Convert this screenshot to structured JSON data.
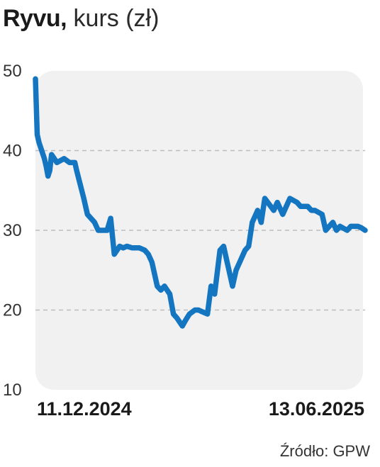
{
  "header": {
    "title_bold": "Ryvu,",
    "title_rest": " kurs (zł)"
  },
  "source": "Źródło: GPW",
  "colors": {
    "line": "#1475c0",
    "plot_bg": "#f1f1f1",
    "grid": "#bdbdbd"
  },
  "chart_data": {
    "type": "line",
    "title": "Ryvu, kurs (zł)",
    "ylabel": "",
    "xlabel": "",
    "ylim": [
      10,
      50
    ],
    "yticks": [
      10,
      20,
      30,
      40,
      50
    ],
    "grid_y": true,
    "x_tick_labels": [
      "11.12.2024",
      "13.06.2025"
    ],
    "x_range": [
      "2024-12-11",
      "2025-06-13"
    ],
    "series": [
      {
        "name": "",
        "x": [
          "2024-12-11",
          "2024-12-12",
          "2024-12-13",
          "2024-12-16",
          "2024-12-17",
          "2024-12-18",
          "2024-12-19",
          "2024-12-20",
          "2024-12-23",
          "2024-12-27",
          "2024-12-30",
          "2025-01-02",
          "2025-01-03",
          "2025-01-07",
          "2025-01-09",
          "2025-01-13",
          "2025-01-15",
          "2025-01-17",
          "2025-01-20",
          "2025-01-22",
          "2025-01-24",
          "2025-01-27",
          "2025-01-29",
          "2025-01-31",
          "2025-02-03",
          "2025-02-05",
          "2025-02-07",
          "2025-02-10",
          "2025-02-12",
          "2025-02-14",
          "2025-02-17",
          "2025-02-19",
          "2025-02-21",
          "2025-02-24",
          "2025-02-26",
          "2025-02-28",
          "2025-03-03",
          "2025-03-05",
          "2025-03-07",
          "2025-03-10",
          "2025-03-12",
          "2025-03-14",
          "2025-03-17",
          "2025-03-19",
          "2025-03-21",
          "2025-03-24",
          "2025-03-26",
          "2025-03-28",
          "2025-03-31",
          "2025-04-02",
          "2025-04-04",
          "2025-04-07",
          "2025-04-09",
          "2025-04-11",
          "2025-04-14",
          "2025-04-16",
          "2025-04-18",
          "2025-04-23",
          "2025-04-25",
          "2025-04-28",
          "2025-04-30",
          "2025-05-02",
          "2025-05-06",
          "2025-05-08",
          "2025-05-12",
          "2025-05-14",
          "2025-05-16",
          "2025-05-20",
          "2025-05-22",
          "2025-05-26",
          "2025-05-28",
          "2025-05-30",
          "2025-06-03",
          "2025-06-05",
          "2025-06-09",
          "2025-06-11",
          "2025-06-13"
        ],
        "values": [
          49.0,
          42.0,
          41.0,
          39.0,
          38.0,
          36.8,
          37.5,
          39.5,
          38.5,
          39.0,
          38.5,
          38.5,
          37.5,
          34.0,
          32.0,
          31.0,
          30.0,
          30.0,
          30.0,
          31.5,
          27.0,
          28.0,
          27.8,
          28.0,
          27.8,
          27.8,
          27.8,
          27.5,
          27.0,
          26.0,
          23.0,
          22.5,
          23.0,
          22.0,
          19.5,
          19.0,
          18.0,
          18.8,
          19.5,
          20.0,
          20.0,
          19.8,
          19.5,
          23.0,
          22.0,
          27.5,
          28.0,
          26.0,
          23.0,
          25.0,
          26.0,
          27.5,
          28.0,
          31.0,
          32.5,
          31.0,
          34.0,
          32.5,
          33.5,
          32.0,
          33.0,
          34.0,
          33.5,
          33.0,
          33.0,
          32.5,
          32.5,
          32.0,
          30.0,
          31.0,
          30.0,
          30.5,
          30.0,
          30.5,
          30.5,
          30.3,
          30.0
        ]
      }
    ]
  }
}
